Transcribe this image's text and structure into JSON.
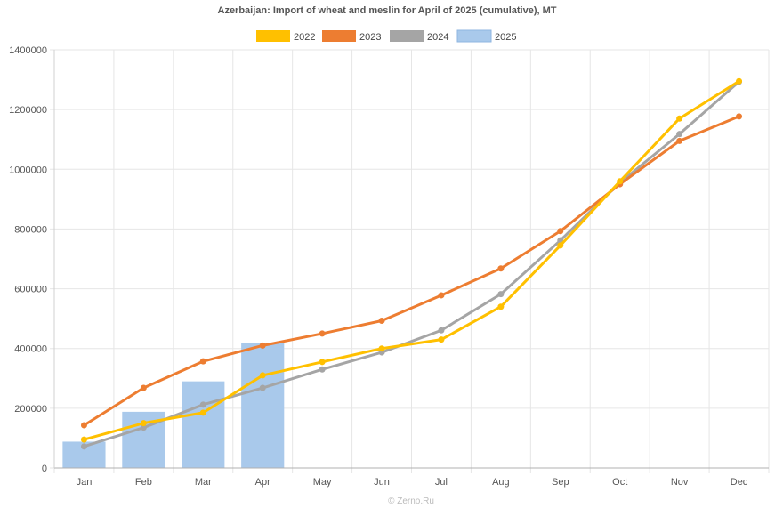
{
  "chart_data": {
    "type": "bar+line",
    "title": "Azerbaijan: Import of wheat and meslin for April of 2025 (cumulative), MT",
    "categories": [
      "Jan",
      "Feb",
      "Mar",
      "Apr",
      "May",
      "Jun",
      "Jul",
      "Aug",
      "Sep",
      "Oct",
      "Nov",
      "Dec"
    ],
    "ylim": [
      0,
      1400000
    ],
    "yticks": [
      "0",
      "200000",
      "400000",
      "600000",
      "800000",
      "1000000",
      "1200000",
      "1400000"
    ],
    "grid": true,
    "legend_position": "top",
    "series": [
      {
        "name": "2022",
        "type": "line",
        "color": "#FFC000",
        "values": [
          95000,
          150000,
          185000,
          310000,
          355000,
          400000,
          430000,
          540000,
          745000,
          960000,
          1170000,
          1295000
        ]
      },
      {
        "name": "2023",
        "type": "line",
        "color": "#ED7D31",
        "values": [
          143000,
          268000,
          357000,
          410000,
          450000,
          493000,
          578000,
          668000,
          793000,
          950000,
          1095000,
          1177000
        ]
      },
      {
        "name": "2024",
        "type": "line",
        "color": "#A5A5A5",
        "values": [
          72000,
          135000,
          212000,
          268000,
          330000,
          387000,
          461000,
          582000,
          762000,
          955000,
          1118000,
          1293000
        ]
      },
      {
        "name": "2025",
        "type": "bar",
        "color": "#A9C9EB",
        "values": [
          88000,
          188000,
          290000,
          420000,
          null,
          null,
          null,
          null,
          null,
          null,
          null,
          null
        ]
      }
    ]
  },
  "credit": "© Zerno.Ru"
}
